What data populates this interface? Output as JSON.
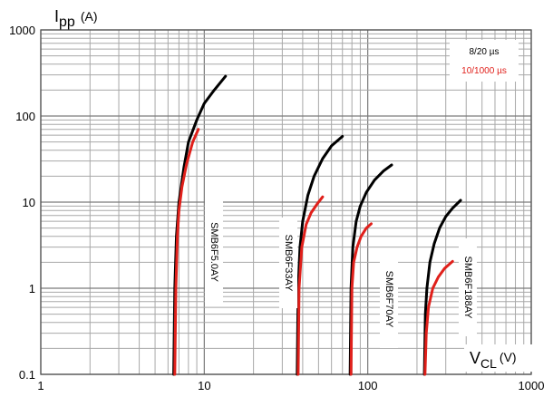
{
  "chart_data": {
    "type": "line",
    "x_scale": "log",
    "y_scale": "log",
    "xlim": [
      1,
      1000
    ],
    "ylim": [
      0.1,
      1000
    ],
    "grid": true,
    "x_ticks": [
      "1",
      "10",
      "100",
      "1000"
    ],
    "y_ticks": [
      "0.1",
      "1",
      "10",
      "100",
      "1000"
    ],
    "y_title": {
      "main": "I",
      "sub": "pp",
      "unit": "(A)"
    },
    "x_title": {
      "main": "V",
      "sub": "CL",
      "unit": "(V)"
    },
    "legend": {
      "position": "top-right",
      "entries": [
        {
          "label": "8/20 µs",
          "color": "#000000"
        },
        {
          "label": "10/1000 µs",
          "color": "#e0201b"
        }
      ]
    },
    "series": [
      {
        "label": "8/20 µs",
        "color": "#000000",
        "part": "SMB6F5.0AY",
        "points": [
          [
            6.5,
            0.1
          ],
          [
            6.6,
            1
          ],
          [
            6.75,
            4
          ],
          [
            7,
            10
          ],
          [
            7.5,
            25
          ],
          [
            8,
            50
          ],
          [
            9,
            90
          ],
          [
            10,
            140
          ],
          [
            11.5,
            200
          ],
          [
            13.5,
            290
          ]
        ]
      },
      {
        "label": "10/1000 µs",
        "color": "#e0201b",
        "part": "SMB6F5.0AY",
        "points": [
          [
            6.6,
            0.1
          ],
          [
            6.7,
            1
          ],
          [
            6.85,
            4
          ],
          [
            7,
            8
          ],
          [
            7.3,
            15
          ],
          [
            7.8,
            28
          ],
          [
            8.5,
            50
          ],
          [
            9.2,
            70
          ]
        ]
      },
      {
        "label": "8/20 µs",
        "color": "#000000",
        "part": "SMB6F33AY",
        "points": [
          [
            37,
            0.1
          ],
          [
            37.5,
            1
          ],
          [
            38.5,
            3
          ],
          [
            40,
            6
          ],
          [
            43,
            12
          ],
          [
            47,
            20
          ],
          [
            53,
            32
          ],
          [
            60,
            45
          ],
          [
            70,
            58
          ]
        ]
      },
      {
        "label": "10/1000 µs",
        "color": "#e0201b",
        "part": "SMB6F33AY",
        "points": [
          [
            37.5,
            0.1
          ],
          [
            38,
            1
          ],
          [
            39.5,
            3
          ],
          [
            42,
            5.5
          ],
          [
            45,
            7.5
          ],
          [
            49,
            9.5
          ],
          [
            53,
            11.5
          ]
        ]
      },
      {
        "label": "8/20 µs",
        "color": "#000000",
        "part": "SMB6F70AY",
        "points": [
          [
            78,
            0.1
          ],
          [
            79,
            1
          ],
          [
            81,
            3
          ],
          [
            85,
            6
          ],
          [
            90,
            9
          ],
          [
            98,
            13
          ],
          [
            110,
            18
          ],
          [
            125,
            23
          ],
          [
            140,
            27
          ]
        ]
      },
      {
        "label": "10/1000 µs",
        "color": "#e0201b",
        "part": "SMB6F70AY",
        "points": [
          [
            79,
            0.1
          ],
          [
            80,
            1
          ],
          [
            82,
            2
          ],
          [
            86,
            3
          ],
          [
            91,
            4
          ],
          [
            98,
            5
          ],
          [
            105,
            5.6
          ]
        ]
      },
      {
        "label": "8/20 µs",
        "color": "#000000",
        "part": "SMB6F188AY",
        "points": [
          [
            222,
            0.1
          ],
          [
            225,
            0.5
          ],
          [
            230,
            1
          ],
          [
            240,
            2
          ],
          [
            255,
            3.3
          ],
          [
            275,
            5
          ],
          [
            300,
            6.8
          ],
          [
            330,
            8.5
          ],
          [
            370,
            10.5
          ]
        ]
      },
      {
        "label": "10/1000 µs",
        "color": "#e0201b",
        "part": "SMB6F188AY",
        "points": [
          [
            224,
            0.1
          ],
          [
            228,
            0.3
          ],
          [
            235,
            0.6
          ],
          [
            250,
            1
          ],
          [
            270,
            1.35
          ],
          [
            295,
            1.7
          ],
          [
            330,
            2.05
          ]
        ]
      }
    ],
    "annotations": [
      "SMB6F5.0AY",
      "SMB6F33AY",
      "SMB6F70AY",
      "SMB6F188AY"
    ]
  }
}
